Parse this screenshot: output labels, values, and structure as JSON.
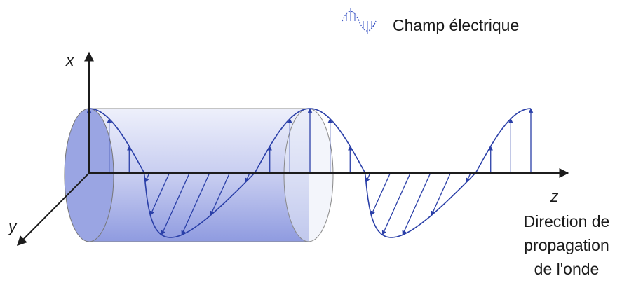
{
  "legend": {
    "label": "Champ électrique"
  },
  "axes": {
    "x": "x",
    "y": "y",
    "z": "z"
  },
  "caption": {
    "lines": [
      "Direction de",
      "propagation",
      "de l'onde"
    ]
  }
}
